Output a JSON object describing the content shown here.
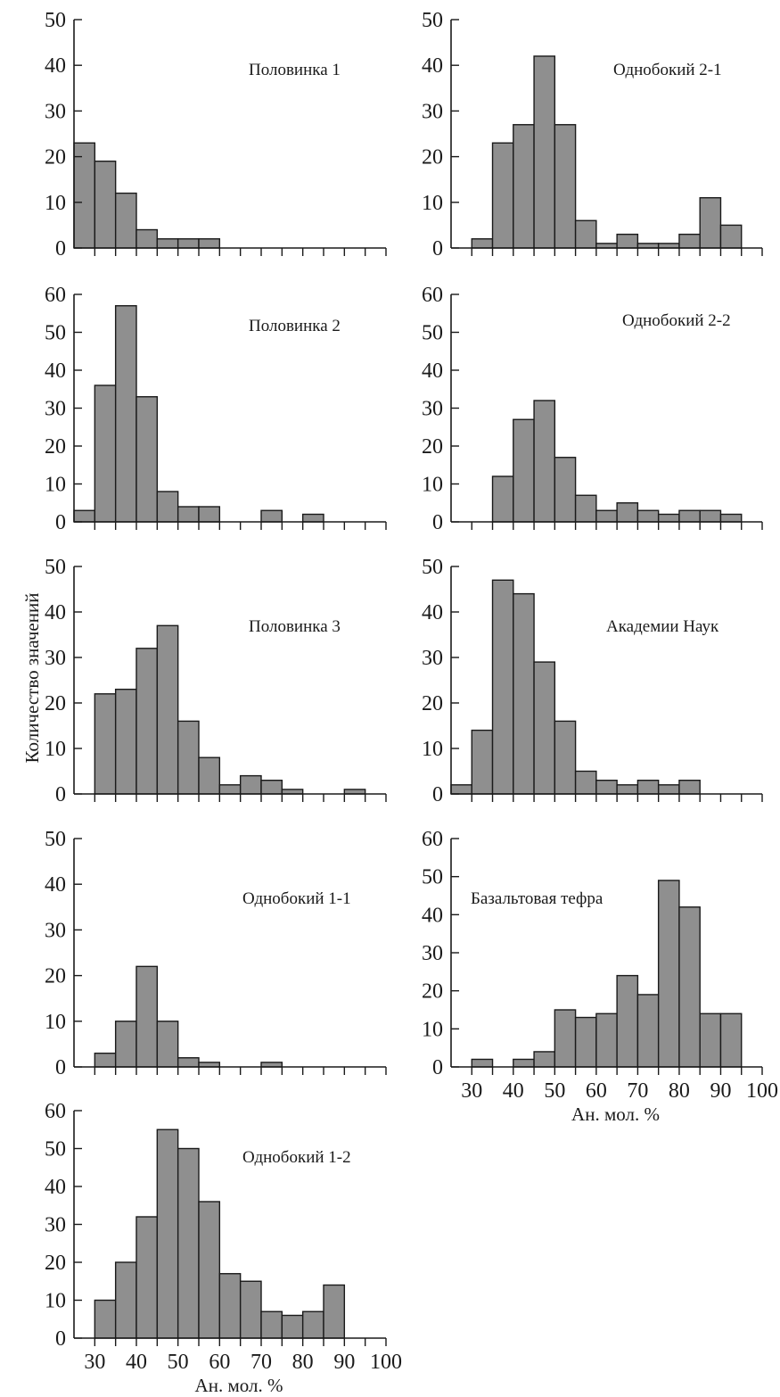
{
  "ylabel": "Количество значений",
  "xlabel": "Ан. мол. %",
  "xticks": [
    30,
    40,
    50,
    60,
    70,
    80,
    90,
    100
  ],
  "chart_data": [
    {
      "type": "bar",
      "title": "Половинка 1",
      "xlim": [
        25,
        100
      ],
      "ylim": [
        0,
        50
      ],
      "yticks": [
        0,
        10,
        20,
        30,
        40,
        50
      ],
      "bin_width": 5,
      "bin_starts": [
        25,
        30,
        35,
        40,
        45,
        50,
        55
      ],
      "values": [
        23,
        19,
        12,
        4,
        2,
        2,
        2
      ],
      "xlabel": ""
    },
    {
      "type": "bar",
      "title": "Половинка 2",
      "xlim": [
        25,
        100
      ],
      "ylim": [
        0,
        60
      ],
      "yticks": [
        0,
        10,
        20,
        30,
        40,
        50,
        60
      ],
      "bin_width": 5,
      "bin_starts": [
        25,
        30,
        35,
        40,
        45,
        50,
        55,
        70,
        80
      ],
      "values": [
        3,
        36,
        57,
        33,
        8,
        4,
        4,
        3,
        2
      ],
      "xlabel": ""
    },
    {
      "type": "bar",
      "title": "Половинка 3",
      "xlim": [
        25,
        100
      ],
      "ylim": [
        0,
        50
      ],
      "yticks": [
        0,
        10,
        20,
        30,
        40,
        50
      ],
      "bin_width": 5,
      "bin_starts": [
        30,
        35,
        40,
        45,
        50,
        55,
        60,
        65,
        70,
        75,
        90
      ],
      "values": [
        22,
        23,
        32,
        37,
        16,
        8,
        2,
        4,
        3,
        1,
        1
      ],
      "xlabel": ""
    },
    {
      "type": "bar",
      "title": "Однобокий 1-1",
      "xlim": [
        25,
        100
      ],
      "ylim": [
        0,
        50
      ],
      "yticks": [
        0,
        10,
        20,
        30,
        40,
        50
      ],
      "bin_width": 5,
      "bin_starts": [
        30,
        35,
        40,
        45,
        50,
        55,
        70
      ],
      "values": [
        3,
        10,
        22,
        10,
        2,
        1,
        1
      ],
      "xlabel": ""
    },
    {
      "type": "bar",
      "title": "Однобокий 1-2",
      "xlim": [
        25,
        100
      ],
      "ylim": [
        0,
        60
      ],
      "yticks": [
        0,
        10,
        20,
        30,
        40,
        50,
        60
      ],
      "bin_width": 5,
      "bin_starts": [
        30,
        35,
        40,
        45,
        50,
        55,
        60,
        65,
        70,
        75,
        80,
        85
      ],
      "values": [
        10,
        20,
        32,
        55,
        50,
        36,
        17,
        15,
        7,
        6,
        7,
        14
      ],
      "xlabel": "Ан. мол. %"
    },
    {
      "type": "bar",
      "title": "Однобокий 2-1",
      "xlim": [
        25,
        100
      ],
      "ylim": [
        0,
        50
      ],
      "yticks": [
        0,
        10,
        20,
        30,
        40,
        50
      ],
      "bin_width": 5,
      "bin_starts": [
        30,
        35,
        40,
        45,
        50,
        55,
        60,
        65,
        70,
        75,
        80,
        85,
        90
      ],
      "values": [
        2,
        23,
        27,
        42,
        27,
        6,
        1,
        3,
        1,
        1,
        3,
        11,
        5
      ],
      "xlabel": ""
    },
    {
      "type": "bar",
      "title": "Однобокий 2-2",
      "xlim": [
        25,
        100
      ],
      "ylim": [
        0,
        60
      ],
      "yticks": [
        0,
        10,
        20,
        30,
        40,
        50,
        60
      ],
      "bin_width": 5,
      "bin_starts": [
        35,
        40,
        45,
        50,
        55,
        60,
        65,
        70,
        75,
        80,
        85,
        90
      ],
      "values": [
        12,
        27,
        32,
        17,
        7,
        3,
        5,
        3,
        2,
        3,
        3,
        2
      ],
      "xlabel": ""
    },
    {
      "type": "bar",
      "title": "Академии Наук",
      "xlim": [
        25,
        100
      ],
      "ylim": [
        0,
        50
      ],
      "yticks": [
        0,
        10,
        20,
        30,
        40,
        50
      ],
      "bin_width": 5,
      "bin_starts": [
        25,
        30,
        35,
        40,
        45,
        50,
        55,
        60,
        65,
        70,
        75,
        80
      ],
      "values": [
        2,
        14,
        47,
        44,
        29,
        16,
        5,
        3,
        2,
        3,
        2,
        3
      ],
      "xlabel": ""
    },
    {
      "type": "bar",
      "title": "Базальтовая тефра",
      "xlim": [
        25,
        100
      ],
      "ylim": [
        0,
        60
      ],
      "yticks": [
        0,
        10,
        20,
        30,
        40,
        50,
        60
      ],
      "bin_width": 5,
      "bin_starts": [
        30,
        35,
        40,
        45,
        50,
        55,
        60,
        65,
        70,
        75,
        80,
        85,
        90
      ],
      "values": [
        2,
        0,
        2,
        4,
        15,
        13,
        14,
        24,
        19,
        49,
        42,
        14,
        14
      ],
      "xlabel": "Ан. мол. %"
    }
  ]
}
